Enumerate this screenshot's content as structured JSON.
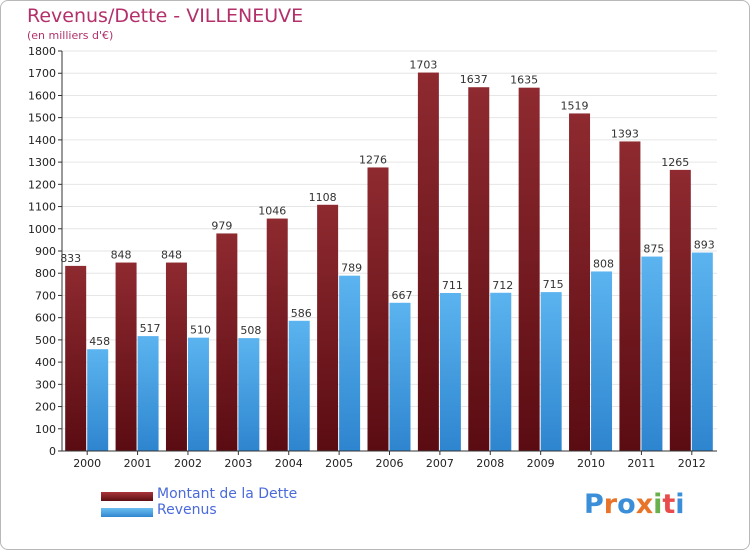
{
  "title": "Revenus/Dette - VILLENEUVE",
  "subtitle": "(en milliers d'€)",
  "chart_data": {
    "type": "bar",
    "categories": [
      "2000",
      "2001",
      "2002",
      "2003",
      "2004",
      "2005",
      "2006",
      "2007",
      "2008",
      "2009",
      "2010",
      "2011",
      "2012"
    ],
    "series": [
      {
        "name": "Montant de la Dette",
        "values": [
          833,
          848,
          848,
          979,
          1046,
          1108,
          1276,
          1703,
          1637,
          1635,
          1519,
          1393,
          1265
        ],
        "color": "#7a1a1f"
      },
      {
        "name": "Revenus",
        "values": [
          458,
          517,
          510,
          508,
          586,
          789,
          667,
          711,
          712,
          715,
          808,
          875,
          893
        ],
        "color": "#4aa3e6"
      }
    ],
    "ylim": [
      0,
      1800
    ],
    "yticks": [
      0,
      100,
      200,
      300,
      400,
      500,
      600,
      700,
      800,
      900,
      1000,
      1100,
      1200,
      1300,
      1400,
      1500,
      1600,
      1700,
      1800
    ],
    "grid": true,
    "legend_position": "bottom-left"
  },
  "logo_text": "Proxiti",
  "colors": {
    "title": "#b3306a",
    "legend_text": "#4a6adb",
    "axis": "#333333",
    "grid": "#e6e6e6"
  }
}
